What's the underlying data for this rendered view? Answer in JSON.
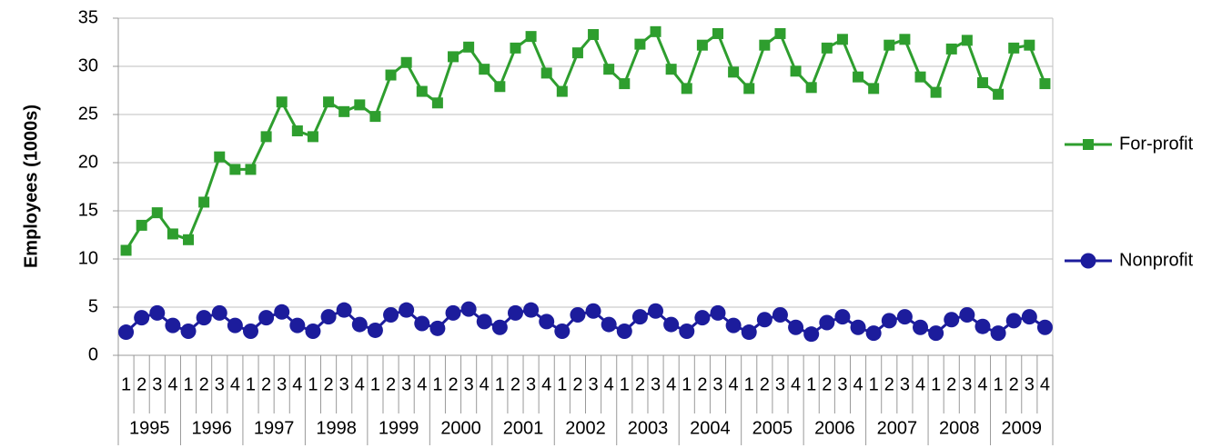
{
  "chart_data": {
    "type": "line",
    "y_label": "Employees (1000s)",
    "categories": [
      "1",
      "2",
      "3",
      "4",
      "1",
      "2",
      "3",
      "4",
      "1",
      "2",
      "3",
      "4",
      "1",
      "2",
      "3",
      "4",
      "1",
      "2",
      "3",
      "4",
      "1",
      "2",
      "3",
      "4",
      "1",
      "2",
      "3",
      "4",
      "1",
      "2",
      "3",
      "4",
      "1",
      "2",
      "3",
      "4",
      "1",
      "2",
      "3",
      "4",
      "1",
      "2",
      "3",
      "4",
      "1",
      "2",
      "3",
      "4",
      "1",
      "2",
      "3",
      "4",
      "1",
      "2",
      "3",
      "4",
      "1",
      "2",
      "3",
      "4"
    ],
    "category_groups": [
      "1995",
      "1996",
      "1997",
      "1998",
      "1999",
      "2000",
      "2001",
      "2002",
      "2003",
      "2004",
      "2005",
      "2006",
      "2007",
      "2008",
      "2009"
    ],
    "series": [
      {
        "name": "For-profit",
        "color": "#2e9e2e",
        "marker": "square",
        "values": [
          10.9,
          13.5,
          14.8,
          12.6,
          12.0,
          15.9,
          20.6,
          19.3,
          19.3,
          22.7,
          26.3,
          23.3,
          22.7,
          26.3,
          25.3,
          26.0,
          24.8,
          29.1,
          30.4,
          27.4,
          26.2,
          31.0,
          32.0,
          29.7,
          27.9,
          31.9,
          33.1,
          29.3,
          27.4,
          31.4,
          33.3,
          29.7,
          28.2,
          32.3,
          33.6,
          29.7,
          27.7,
          32.2,
          33.4,
          29.4,
          27.7,
          32.2,
          33.4,
          29.5,
          27.8,
          31.9,
          32.8,
          28.9,
          27.7,
          32.2,
          32.8,
          28.9,
          27.3,
          31.8,
          32.7,
          28.3,
          27.1,
          31.9,
          32.2,
          28.2
        ]
      },
      {
        "name": "Nonprofit",
        "color": "#1c1c9c",
        "marker": "circle",
        "values": [
          2.4,
          3.9,
          4.4,
          3.1,
          2.5,
          3.9,
          4.4,
          3.1,
          2.5,
          3.9,
          4.5,
          3.1,
          2.5,
          4.0,
          4.7,
          3.2,
          2.6,
          4.2,
          4.7,
          3.3,
          2.8,
          4.4,
          4.8,
          3.5,
          2.9,
          4.4,
          4.7,
          3.5,
          2.5,
          4.2,
          4.6,
          3.2,
          2.5,
          4.0,
          4.6,
          3.2,
          2.5,
          3.9,
          4.4,
          3.1,
          2.4,
          3.7,
          4.2,
          2.9,
          2.2,
          3.4,
          4.0,
          2.9,
          2.3,
          3.6,
          4.0,
          2.9,
          2.3,
          3.7,
          4.2,
          3.0,
          2.3,
          3.6,
          4.0,
          2.9
        ]
      }
    ],
    "ylim": [
      0,
      35
    ],
    "yticks": [
      0,
      5,
      10,
      15,
      20,
      25,
      30,
      35
    ],
    "grid": true,
    "legend": "right"
  }
}
